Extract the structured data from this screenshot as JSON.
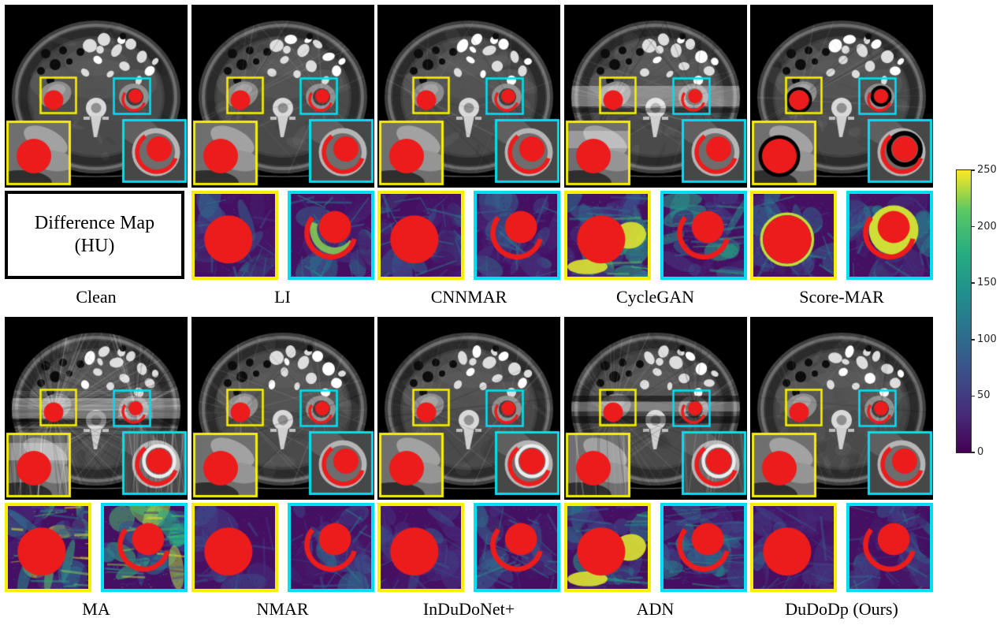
{
  "figure": {
    "colors": {
      "highlight_yellow": "#f8ee00",
      "highlight_cyan": "#00dff2",
      "metal_red": "#ec1c1c",
      "page_background": "#ffffff",
      "panel_background": "#000000"
    },
    "diff_box": {
      "line1": "Difference Map",
      "line2": "(HU)"
    },
    "colorbar": {
      "min": 0,
      "max": 250,
      "ticks": [
        0,
        50,
        100,
        150,
        200,
        250
      ],
      "colormap": "viridis"
    },
    "rows": [
      {
        "name": "top",
        "columns": [
          {
            "label": "Clean",
            "slug": "clean",
            "ct": {
              "streaks": 0
            },
            "diff": {
              "type": "textbox"
            }
          },
          {
            "label": "LI",
            "slug": "li",
            "ct": {
              "streaks": 0.2
            },
            "diff": {
              "type": "pair",
              "yellow": {
                "level": 0.45
              },
              "cyan": {
                "level": 0.55,
                "glow": true
              }
            }
          },
          {
            "label": "CNNMAR",
            "slug": "cnnmar",
            "ct": {
              "streaks": 0.15
            },
            "diff": {
              "type": "pair",
              "yellow": {
                "level": 0.38
              },
              "cyan": {
                "level": 0.45
              }
            }
          },
          {
            "label": "CycleGAN",
            "slug": "cyclegan",
            "ct": {
              "streaks": 0.3,
              "band": true
            },
            "diff": {
              "type": "pair",
              "yellow": {
                "level": 0.8,
                "hstreaks": true,
                "blob": true
              },
              "cyan": {
                "level": 0.7,
                "hstreaks": true
              }
            }
          },
          {
            "label": "Score-MAR",
            "slug": "score-mar",
            "ct": {
              "streaks": 0.15,
              "halo": true
            },
            "diff": {
              "type": "pair",
              "yellow": {
                "level": 0.45,
                "ring_thin": true
              },
              "cyan": {
                "level": 0.55,
                "ring": true
              }
            }
          }
        ]
      },
      {
        "name": "bottom",
        "columns": [
          {
            "label": "MA",
            "slug": "ma",
            "ct": {
              "streaks": 1,
              "band": true,
              "hlines": true,
              "whitering": true
            },
            "diff": {
              "type": "pair",
              "yellow": {
                "level": 1,
                "hstreaks": true
              },
              "cyan": {
                "level": 0.95,
                "hstreaks": true
              }
            }
          },
          {
            "label": "NMAR",
            "slug": "nmar",
            "ct": {
              "streaks": 0.25
            },
            "diff": {
              "type": "pair",
              "yellow": {
                "level": 0.35
              },
              "cyan": {
                "level": 0.4
              }
            }
          },
          {
            "label": "InDuDoNet+",
            "slug": "indudonet",
            "ct": {
              "streaks": 0.2,
              "whitering": true
            },
            "diff": {
              "type": "pair",
              "yellow": {
                "level": 0.3
              },
              "cyan": {
                "level": 0.5
              }
            }
          },
          {
            "label": "ADN",
            "slug": "adn",
            "ct": {
              "streaks": 0.45,
              "darkband": true,
              "whitering": true
            },
            "diff": {
              "type": "pair",
              "yellow": {
                "level": 0.65,
                "hstreaks": true,
                "blob": true
              },
              "cyan": {
                "level": 0.6,
                "hstreaks": true
              }
            }
          },
          {
            "label": "DuDoDp (Ours)",
            "slug": "dudodp",
            "ct": {
              "streaks": 0.2
            },
            "diff": {
              "type": "pair",
              "yellow": {
                "level": 0.35
              },
              "cyan": {
                "level": 0.4
              }
            }
          }
        ]
      }
    ]
  }
}
